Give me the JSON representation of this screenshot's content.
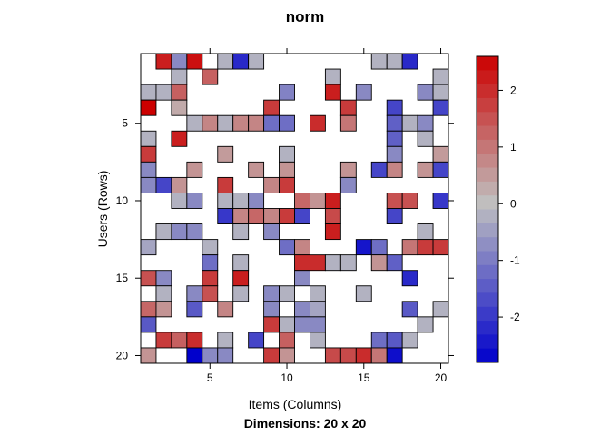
{
  "chart_data": {
    "type": "heatmap",
    "title": "norm",
    "xlabel": "Items (Columns)",
    "ylabel": "Users (Rows)",
    "subtitle": "Dimensions: 20 x 20",
    "n_rows": 20,
    "n_cols": 20,
    "x_ticks": [
      5,
      10,
      15,
      20
    ],
    "y_ticks": [
      5,
      10,
      15,
      20
    ],
    "colorbar_ticks": [
      -2,
      -1,
      0,
      1,
      2
    ],
    "value_range": [
      -2.8,
      2.6
    ],
    "cells": [
      [
        1,
        2,
        2.2
      ],
      [
        1,
        3,
        -0.8
      ],
      [
        1,
        4,
        2.4
      ],
      [
        1,
        6,
        -0.2
      ],
      [
        1,
        7,
        -2.2
      ],
      [
        1,
        8,
        -0.2
      ],
      [
        1,
        16,
        -0.2
      ],
      [
        1,
        17,
        -0.2
      ],
      [
        1,
        18,
        -2.2
      ],
      [
        2,
        3,
        -0.2
      ],
      [
        2,
        5,
        1.3
      ],
      [
        2,
        13,
        -0.2
      ],
      [
        2,
        20,
        -0.2
      ],
      [
        3,
        1,
        -0.2
      ],
      [
        3,
        2,
        -0.2
      ],
      [
        3,
        3,
        1.3
      ],
      [
        3,
        10,
        -0.9
      ],
      [
        3,
        13,
        2.2
      ],
      [
        3,
        15,
        -0.8
      ],
      [
        3,
        19,
        -0.8
      ],
      [
        3,
        20,
        -0.2
      ],
      [
        4,
        1,
        2.6
      ],
      [
        4,
        3,
        0.3
      ],
      [
        4,
        9,
        1.8
      ],
      [
        4,
        14,
        1.8
      ],
      [
        4,
        17,
        -1.8
      ],
      [
        4,
        20,
        -1.8
      ],
      [
        5,
        4,
        -0.2
      ],
      [
        5,
        5,
        0.8
      ],
      [
        5,
        6,
        -0.2
      ],
      [
        5,
        7,
        0.8
      ],
      [
        5,
        8,
        0.8
      ],
      [
        5,
        9,
        -1.2
      ],
      [
        5,
        10,
        -1.2
      ],
      [
        5,
        12,
        2.0
      ],
      [
        5,
        14,
        1.0
      ],
      [
        5,
        17,
        -1.4
      ],
      [
        5,
        18,
        -0.2
      ],
      [
        5,
        19,
        -0.8
      ],
      [
        6,
        1,
        -0.2
      ],
      [
        6,
        3,
        2.2
      ],
      [
        6,
        17,
        -1.4
      ],
      [
        6,
        19,
        -0.2
      ],
      [
        7,
        1,
        1.8
      ],
      [
        7,
        6,
        0.5
      ],
      [
        7,
        10,
        -0.2
      ],
      [
        7,
        17,
        -0.8
      ],
      [
        7,
        20,
        0.5
      ],
      [
        8,
        1,
        -0.8
      ],
      [
        8,
        4,
        0.6
      ],
      [
        8,
        8,
        0.6
      ],
      [
        8,
        10,
        0.6
      ],
      [
        8,
        14,
        0.6
      ],
      [
        8,
        16,
        -1.8
      ],
      [
        8,
        17,
        0.8
      ],
      [
        8,
        19,
        0.6
      ],
      [
        8,
        20,
        -1.8
      ],
      [
        9,
        1,
        -0.8
      ],
      [
        9,
        2,
        -1.8
      ],
      [
        9,
        3,
        0.6
      ],
      [
        9,
        6,
        1.8
      ],
      [
        9,
        9,
        0.8
      ],
      [
        9,
        10,
        1.8
      ],
      [
        9,
        14,
        -0.8
      ],
      [
        10,
        3,
        -0.2
      ],
      [
        10,
        4,
        -0.8
      ],
      [
        10,
        6,
        -0.2
      ],
      [
        10,
        7,
        -0.2
      ],
      [
        10,
        8,
        -0.8
      ],
      [
        10,
        11,
        1.2
      ],
      [
        10,
        12,
        0.6
      ],
      [
        10,
        13,
        2.2
      ],
      [
        10,
        17,
        1.5
      ],
      [
        10,
        18,
        1.5
      ],
      [
        10,
        20,
        -2.0
      ],
      [
        11,
        6,
        -2.0
      ],
      [
        11,
        7,
        0.8
      ],
      [
        11,
        8,
        1.2
      ],
      [
        11,
        9,
        0.8
      ],
      [
        11,
        10,
        1.8
      ],
      [
        11,
        11,
        -1.8
      ],
      [
        11,
        13,
        1.6
      ],
      [
        11,
        17,
        -1.8
      ],
      [
        12,
        2,
        -0.2
      ],
      [
        12,
        3,
        -0.8
      ],
      [
        12,
        4,
        -0.8
      ],
      [
        12,
        7,
        -0.2
      ],
      [
        12,
        9,
        -0.8
      ],
      [
        12,
        13,
        2.2
      ],
      [
        12,
        19,
        -0.2
      ],
      [
        13,
        1,
        -0.4
      ],
      [
        13,
        5,
        -0.2
      ],
      [
        13,
        10,
        -1.2
      ],
      [
        13,
        11,
        0.8
      ],
      [
        13,
        15,
        -2.5
      ],
      [
        13,
        16,
        -1.2
      ],
      [
        13,
        18,
        1.0
      ],
      [
        13,
        19,
        1.8
      ],
      [
        13,
        20,
        1.8
      ],
      [
        14,
        5,
        -1.2
      ],
      [
        14,
        7,
        -0.2
      ],
      [
        14,
        11,
        2.0
      ],
      [
        14,
        12,
        2.0
      ],
      [
        14,
        13,
        -0.2
      ],
      [
        14,
        14,
        -0.2
      ],
      [
        14,
        16,
        0.6
      ],
      [
        14,
        17,
        -1.4
      ],
      [
        15,
        1,
        1.5
      ],
      [
        15,
        2,
        -0.8
      ],
      [
        15,
        5,
        1.8
      ],
      [
        15,
        7,
        2.2
      ],
      [
        15,
        11,
        -0.8
      ],
      [
        15,
        18,
        -2.2
      ],
      [
        16,
        2,
        -0.2
      ],
      [
        16,
        4,
        -0.8
      ],
      [
        16,
        5,
        1.5
      ],
      [
        16,
        7,
        -0.2
      ],
      [
        16,
        9,
        -0.8
      ],
      [
        16,
        10,
        -0.2
      ],
      [
        16,
        12,
        -0.2
      ],
      [
        16,
        15,
        -0.2
      ],
      [
        17,
        1,
        1.2
      ],
      [
        17,
        2,
        0.6
      ],
      [
        17,
        4,
        -1.5
      ],
      [
        17,
        6,
        0.8
      ],
      [
        17,
        9,
        -0.8
      ],
      [
        17,
        11,
        -0.8
      ],
      [
        17,
        12,
        -0.4
      ],
      [
        17,
        18,
        -1.5
      ],
      [
        17,
        20,
        -0.2
      ],
      [
        18,
        1,
        -1.5
      ],
      [
        18,
        9,
        1.8
      ],
      [
        18,
        10,
        -0.2
      ],
      [
        18,
        11,
        -0.8
      ],
      [
        18,
        12,
        -0.8
      ],
      [
        18,
        19,
        -0.2
      ],
      [
        19,
        2,
        1.8
      ],
      [
        19,
        3,
        1.3
      ],
      [
        19,
        4,
        2.0
      ],
      [
        19,
        6,
        -0.2
      ],
      [
        19,
        8,
        -1.8
      ],
      [
        19,
        10,
        1.3
      ],
      [
        19,
        12,
        -0.2
      ],
      [
        19,
        16,
        -1.2
      ],
      [
        19,
        17,
        -1.5
      ],
      [
        19,
        18,
        -0.2
      ],
      [
        20,
        1,
        0.6
      ],
      [
        20,
        4,
        -2.8
      ],
      [
        20,
        5,
        -0.8
      ],
      [
        20,
        6,
        -0.8
      ],
      [
        20,
        9,
        1.8
      ],
      [
        20,
        10,
        0.6
      ],
      [
        20,
        13,
        1.6
      ],
      [
        20,
        14,
        1.6
      ],
      [
        20,
        15,
        2.0
      ],
      [
        20,
        16,
        1.0
      ],
      [
        20,
        17,
        -2.6
      ]
    ]
  }
}
